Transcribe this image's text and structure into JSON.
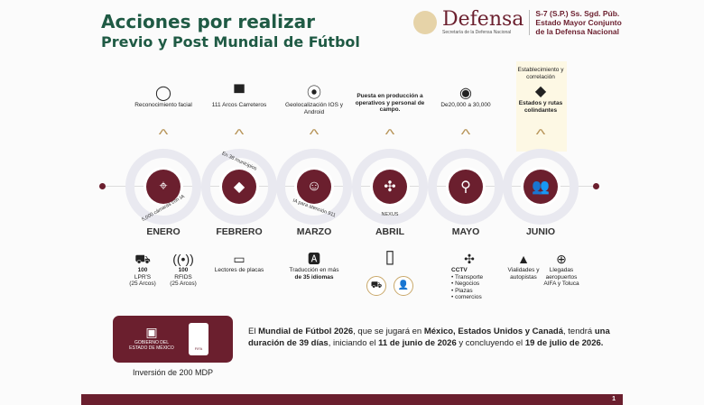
{
  "title": {
    "line1": "Acciones por realizar",
    "line2": "Previo y Post Mundial de Fútbol"
  },
  "header": {
    "brand": "Defensa",
    "brand_sub": "Secretaría de la Defensa Nacional",
    "office1": "S-7 (S.P.) Ss. Sgd. Púb.",
    "office2": "Estado Mayor Conjunto",
    "office3": "de la Defensa Nacional"
  },
  "months": [
    {
      "name": "ENERO",
      "top": "Reconocimiento facial",
      "top_icon": "face",
      "arc": "5,000 cámaras con IA",
      "icon": "⌖"
    },
    {
      "name": "FEBRERO",
      "top": "111 Arcos Carreteros",
      "top_icon": "▀",
      "arc": "En 38 municipios",
      "icon": "◆"
    },
    {
      "name": "MARZO",
      "top": "Geolocalización IOS y Android",
      "top_icon": "⦿",
      "arc": "IA para atención 911",
      "icon": "☺"
    },
    {
      "name": "ABRIL",
      "top": "Puesta en producción a operativos y personal de campo.",
      "top_icon": "",
      "arc": "NEXUS",
      "icon": "✣"
    },
    {
      "name": "MAYO",
      "top": "De20,000 a 30,000",
      "top_icon": "◉",
      "arc": "",
      "icon": "⚲"
    },
    {
      "name": "JUNIO",
      "top_pre": "Establecimiento y correlación",
      "top": "Estados y rutas colindantes",
      "top_icon": "◆",
      "arc": "",
      "icon": "👥"
    }
  ],
  "bottom": {
    "enero": [
      {
        "value": "100",
        "label": "LPR'S",
        "sub": "(25 Arcos)"
      },
      {
        "value": "100",
        "label": "RFIDS",
        "sub": "(25 Arcos)"
      }
    ],
    "febrero": "Lectores de placas",
    "marzo_pre": "Traducción en más",
    "marzo_bold": "de 35 idiomas",
    "mayo_title": "CCTV",
    "mayo_items": [
      "• Transporte",
      "• Negocios",
      "• Plazas",
      "• comercios"
    ],
    "junio": [
      "Vialidades y autopistas",
      "Llegadas aeropuertos AIFA y Toluca"
    ]
  },
  "card": {
    "org1": "GOBIERNO DEL",
    "org2": "ESTADO DE MÉXICO",
    "fifa": "FIFA",
    "investment": "Inversión de 200 MDP"
  },
  "description": {
    "p1": "El ",
    "b1": "Mundial de Fútbol 2026",
    "p2": ", que se jugará en ",
    "b2": "México, Estados Unidos y Canadá",
    "p3": ", tendrá ",
    "b3": "una duración de 39 días",
    "p4": ", iniciando el ",
    "b4": "11 de junio de 2026",
    "p5": " y concluyendo el ",
    "b5": "19 de julio de 2026."
  },
  "page_number": "1",
  "colors": {
    "primary": "#6b1f2e",
    "title": "#1f5a44",
    "accent": "#b8955a"
  }
}
